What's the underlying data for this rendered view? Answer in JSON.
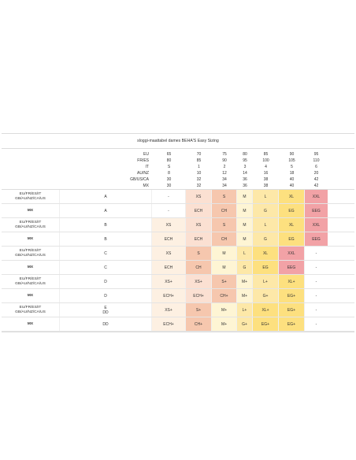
{
  "table": {
    "title": "sloggi-maattabel dames BEHA'S Easy Sizing",
    "header_systems": [
      "EU",
      "FR/ES",
      "IT",
      "AU/NZ",
      "GB/US/CA",
      "MX"
    ],
    "header_columns": [
      [
        "65",
        "80",
        "S",
        "8",
        "30",
        "30"
      ],
      [
        "70",
        "85",
        "1",
        "10",
        "32",
        "32"
      ],
      [
        "75",
        "90",
        "2",
        "12",
        "34",
        "34"
      ],
      [
        "80",
        "95",
        "3",
        "14",
        "36",
        "36"
      ],
      [
        "85",
        "100",
        "4",
        "16",
        "38",
        "38"
      ],
      [
        "90",
        "105",
        "5",
        "18",
        "40",
        "40"
      ],
      [
        "95",
        "110",
        "6",
        "20",
        "42",
        "42"
      ]
    ],
    "colors": {
      "white": "#ffffff",
      "very_light_peach": "#fdf0e2",
      "light_peach": "#fbe0d2",
      "salmon": "#f6c7ae",
      "pale_yellow": "#fef5d4",
      "soft_yellow": "#fde8a8",
      "yellow": "#fde07f",
      "pink": "#f2a2a6"
    },
    "rows": [
      {
        "system": [
          "EU/FR/ES/IT",
          "GB/AU/NZ/CA/US"
        ],
        "bold": false,
        "cup": [
          "A"
        ],
        "cells": [
          [
            "-",
            "white"
          ],
          [
            "XS",
            "light_peach"
          ],
          [
            "S",
            "salmon"
          ],
          [
            "M",
            "pale_yellow"
          ],
          [
            "L",
            "soft_yellow"
          ],
          [
            "XL",
            "yellow"
          ],
          [
            "XXL",
            "pink"
          ]
        ]
      },
      {
        "system": [
          "MX"
        ],
        "bold": true,
        "cup": [
          "A"
        ],
        "cells": [
          [
            "-",
            "white"
          ],
          [
            "ECH",
            "light_peach"
          ],
          [
            "CH",
            "salmon"
          ],
          [
            "M",
            "pale_yellow"
          ],
          [
            "G",
            "soft_yellow"
          ],
          [
            "EG",
            "yellow"
          ],
          [
            "EEG",
            "pink"
          ]
        ]
      },
      {
        "system": [
          "EU/FR/ES/IT",
          "GB/AU/NZ/CA/US"
        ],
        "bold": false,
        "cup": [
          "B"
        ],
        "cells": [
          [
            "XS",
            "very_light_peach"
          ],
          [
            "XS",
            "light_peach"
          ],
          [
            "S",
            "salmon"
          ],
          [
            "M",
            "pale_yellow"
          ],
          [
            "L",
            "soft_yellow"
          ],
          [
            "XL",
            "yellow"
          ],
          [
            "XXL",
            "pink"
          ]
        ]
      },
      {
        "system": [
          "MX"
        ],
        "bold": true,
        "cup": [
          "B"
        ],
        "cells": [
          [
            "ECH",
            "very_light_peach"
          ],
          [
            "ECH",
            "light_peach"
          ],
          [
            "CH",
            "salmon"
          ],
          [
            "M",
            "pale_yellow"
          ],
          [
            "G",
            "soft_yellow"
          ],
          [
            "EG",
            "yellow"
          ],
          [
            "EEG",
            "pink"
          ]
        ]
      },
      {
        "system": [
          "EU/FR/ES/IT",
          "GB/AU/NZ/CA/US"
        ],
        "bold": false,
        "cup": [
          "C"
        ],
        "cells": [
          [
            "XS",
            "very_light_peach"
          ],
          [
            "S",
            "salmon"
          ],
          [
            "M",
            "pale_yellow"
          ],
          [
            "L",
            "soft_yellow"
          ],
          [
            "XL",
            "yellow"
          ],
          [
            "XXL",
            "pink"
          ],
          [
            "-",
            "white"
          ]
        ]
      },
      {
        "system": [
          "MX"
        ],
        "bold": true,
        "cup": [
          "C"
        ],
        "cells": [
          [
            "ECH",
            "very_light_peach"
          ],
          [
            "CH",
            "salmon"
          ],
          [
            "M",
            "pale_yellow"
          ],
          [
            "G",
            "soft_yellow"
          ],
          [
            "EG",
            "yellow"
          ],
          [
            "EEG",
            "pink"
          ],
          [
            "-",
            "white"
          ]
        ]
      },
      {
        "system": [
          "EU/FR/ES/IT",
          "GB/AU/NZ/CA/US"
        ],
        "bold": false,
        "cup": [
          "D"
        ],
        "cells": [
          [
            "XS+",
            "very_light_peach"
          ],
          [
            "XS+",
            "light_peach"
          ],
          [
            "S+",
            "salmon"
          ],
          [
            "M+",
            "pale_yellow"
          ],
          [
            "L+",
            "soft_yellow"
          ],
          [
            "XL+",
            "yellow"
          ],
          [
            "-",
            "white"
          ]
        ]
      },
      {
        "system": [
          "MX"
        ],
        "bold": true,
        "cup": [
          "D"
        ],
        "cells": [
          [
            "ECH+",
            "very_light_peach"
          ],
          [
            "ECH+",
            "light_peach"
          ],
          [
            "CH+",
            "salmon"
          ],
          [
            "M+",
            "pale_yellow"
          ],
          [
            "G+",
            "soft_yellow"
          ],
          [
            "EG+",
            "yellow"
          ],
          [
            "-",
            "white"
          ]
        ]
      },
      {
        "system": [
          "EU/FR/ES/IT",
          "GB/AU/NZ/CA/US"
        ],
        "bold": false,
        "cup": [
          "E",
          "DD"
        ],
        "cells": [
          [
            "XS+",
            "very_light_peach"
          ],
          [
            "S+",
            "salmon"
          ],
          [
            "M+",
            "pale_yellow"
          ],
          [
            "L+",
            "soft_yellow"
          ],
          [
            "XL+",
            "yellow"
          ],
          [
            "EG+",
            "yellow"
          ],
          [
            "-",
            "white"
          ]
        ]
      },
      {
        "system": [
          "MX"
        ],
        "bold": true,
        "cup": [
          "DD"
        ],
        "cells": [
          [
            "ECH+",
            "very_light_peach"
          ],
          [
            "CH+",
            "salmon"
          ],
          [
            "M+",
            "pale_yellow"
          ],
          [
            "G+",
            "soft_yellow"
          ],
          [
            "EG+",
            "yellow"
          ],
          [
            "EG+",
            "yellow"
          ],
          [
            "-",
            "white"
          ]
        ]
      }
    ]
  }
}
